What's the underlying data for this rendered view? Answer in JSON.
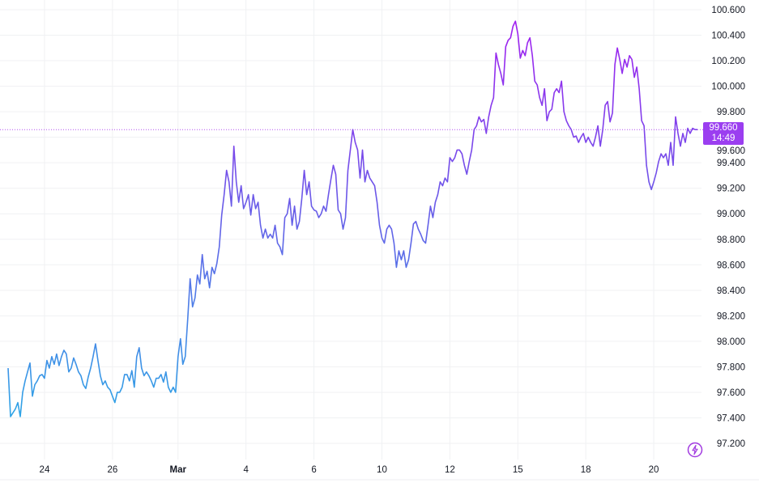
{
  "chart_data": {
    "type": "line",
    "title": "",
    "xlabel": "",
    "ylabel": "",
    "ylim": [
      97.2,
      100.6
    ],
    "grid": true,
    "y_ticks": [
      "100.600",
      "100.400",
      "100.200",
      "100.000",
      "99.800",
      "99.600",
      "99.400",
      "99.200",
      "99.000",
      "98.800",
      "98.600",
      "98.400",
      "98.200",
      "98.000",
      "97.800",
      "97.600",
      "97.400",
      "97.200"
    ],
    "x_ticks": [
      {
        "label": "24",
        "index": 15,
        "bold": false
      },
      {
        "label": "26",
        "index": 43,
        "bold": false
      },
      {
        "label": "Mar",
        "index": 70,
        "bold": true
      },
      {
        "label": "4",
        "index": 98,
        "bold": false
      },
      {
        "label": "6",
        "index": 126,
        "bold": false
      },
      {
        "label": "10",
        "index": 154,
        "bold": false
      },
      {
        "label": "12",
        "index": 182,
        "bold": false
      },
      {
        "label": "15",
        "index": 210,
        "bold": false
      },
      {
        "label": "18",
        "index": 238,
        "bold": false
      },
      {
        "label": "20",
        "index": 266,
        "bold": false
      }
    ],
    "colors": {
      "low": "#2ea6e6",
      "mid": "#6a5ae8",
      "high": "#a020f0",
      "price_line": "#b24ef0",
      "price_tag": "#9b3ef0"
    },
    "last_price": {
      "value": "99.660",
      "time": "14:49",
      "numeric": 99.66
    },
    "values": [
      97.79,
      97.41,
      97.44,
      97.47,
      97.52,
      97.41,
      97.6,
      97.69,
      97.76,
      97.83,
      97.57,
      97.66,
      97.69,
      97.73,
      97.74,
      97.71,
      97.85,
      97.79,
      97.88,
      97.82,
      97.9,
      97.81,
      97.88,
      97.93,
      97.9,
      97.76,
      97.79,
      97.87,
      97.82,
      97.76,
      97.73,
      97.66,
      97.63,
      97.72,
      97.79,
      97.88,
      97.98,
      97.85,
      97.73,
      97.66,
      97.69,
      97.64,
      97.62,
      97.57,
      97.52,
      97.6,
      97.6,
      97.64,
      97.74,
      97.74,
      97.69,
      97.77,
      97.64,
      97.88,
      97.95,
      97.79,
      97.73,
      97.76,
      97.73,
      97.69,
      97.64,
      97.71,
      97.71,
      97.74,
      97.68,
      97.76,
      97.64,
      97.6,
      97.64,
      97.6,
      97.88,
      98.02,
      97.82,
      97.88,
      98.17,
      98.49,
      98.27,
      98.34,
      98.52,
      98.45,
      98.68,
      98.49,
      98.55,
      98.42,
      98.58,
      98.53,
      98.61,
      98.74,
      98.99,
      99.15,
      99.34,
      99.25,
      99.06,
      99.53,
      99.25,
      99.09,
      99.22,
      99.04,
      99.09,
      99.15,
      98.99,
      99.15,
      99.04,
      99.09,
      98.91,
      98.81,
      98.88,
      98.81,
      98.84,
      98.81,
      98.91,
      98.77,
      98.74,
      98.68,
      98.97,
      99.0,
      99.12,
      98.91,
      99.06,
      98.88,
      98.94,
      99.12,
      99.34,
      99.15,
      99.25,
      99.06,
      99.03,
      99.02,
      98.97,
      99.0,
      99.06,
      99.02,
      99.15,
      99.27,
      99.38,
      99.31,
      99.03,
      99.0,
      98.88,
      98.97,
      99.34,
      99.5,
      99.66,
      99.56,
      99.5,
      99.28,
      99.5,
      99.25,
      99.34,
      99.28,
      99.25,
      99.22,
      99.09,
      98.91,
      98.81,
      98.77,
      98.88,
      98.91,
      98.88,
      98.77,
      98.58,
      98.71,
      98.64,
      98.71,
      98.58,
      98.64,
      98.77,
      98.92,
      98.94,
      98.88,
      98.84,
      98.79,
      98.77,
      98.91,
      99.06,
      98.97,
      99.09,
      99.15,
      99.25,
      99.22,
      99.28,
      99.25,
      99.44,
      99.41,
      99.44,
      99.5,
      99.5,
      99.47,
      99.38,
      99.31,
      99.41,
      99.5,
      99.66,
      99.69,
      99.76,
      99.72,
      99.74,
      99.63,
      99.76,
      99.85,
      99.91,
      100.26,
      100.17,
      100.1,
      100.01,
      100.31,
      100.36,
      100.38,
      100.47,
      100.51,
      100.41,
      100.22,
      100.28,
      100.24,
      100.34,
      100.38,
      100.24,
      100.04,
      100.01,
      99.91,
      99.85,
      99.98,
      99.73,
      99.8,
      99.82,
      99.95,
      99.98,
      99.95,
      100.04,
      99.8,
      99.73,
      99.69,
      99.66,
      99.6,
      99.61,
      99.56,
      99.6,
      99.63,
      99.56,
      99.6,
      99.56,
      99.53,
      99.6,
      99.69,
      99.53,
      99.66,
      99.85,
      99.88,
      99.72,
      99.79,
      100.17,
      100.3,
      100.21,
      100.1,
      100.21,
      100.15,
      100.24,
      100.21,
      100.07,
      100.15,
      99.98,
      99.73,
      99.69,
      99.38,
      99.25,
      99.19,
      99.25,
      99.32,
      99.41,
      99.47,
      99.44,
      99.47,
      99.38,
      99.56,
      99.38,
      99.76,
      99.63,
      99.53,
      99.63,
      99.56,
      99.67,
      99.63,
      99.67,
      99.66,
      99.66
    ]
  },
  "icons": {
    "bottom_right": "lightning-bolt-icon"
  }
}
